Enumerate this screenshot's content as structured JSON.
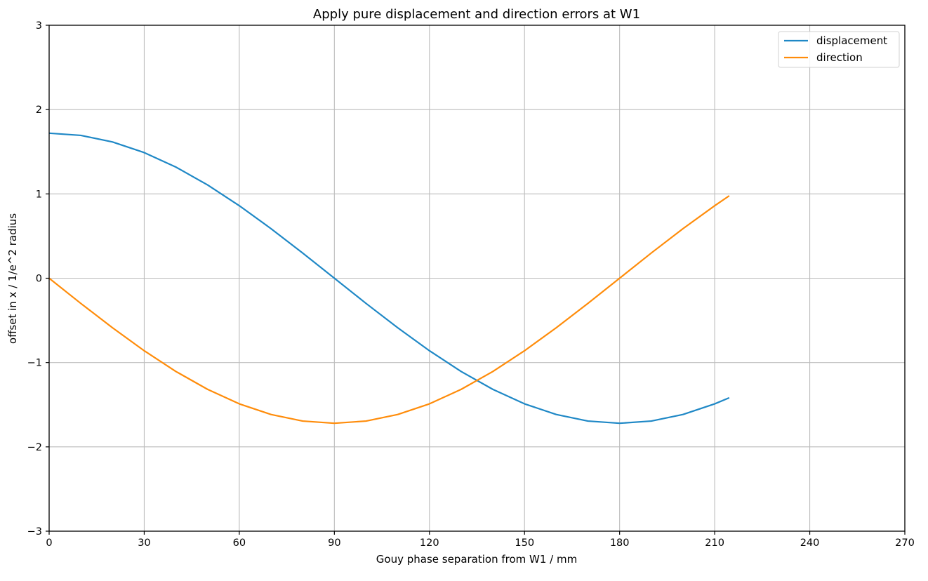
{
  "chart_data": {
    "type": "line",
    "title": "Apply pure displacement and direction errors at W1",
    "xlabel": "Gouy phase separation from W1 / mm",
    "ylabel": "offset in x / 1/e^2 radius",
    "xlim": [
      0,
      270
    ],
    "ylim": [
      -3,
      3
    ],
    "xticks": [
      0,
      30,
      60,
      90,
      120,
      150,
      180,
      210,
      240,
      270
    ],
    "xtick_labels": [
      "0",
      "30",
      "60",
      "90",
      "120",
      "150",
      "180",
      "210",
      "240",
      "270"
    ],
    "yticks": [
      -3,
      -2,
      -1,
      0,
      1,
      2,
      3
    ],
    "ytick_labels": [
      "−3",
      "−2",
      "−1",
      "0",
      "1",
      "2",
      "3"
    ],
    "grid": true,
    "legend_position": "top-right",
    "series": [
      {
        "name": "displacement",
        "color": "#1f88c6",
        "x": [
          0,
          10,
          20,
          30,
          40,
          50,
          60,
          70,
          80,
          90,
          100,
          110,
          120,
          130,
          140,
          150,
          160,
          170,
          180,
          190,
          200,
          210,
          214.6
        ],
        "y": [
          1.72,
          1.694,
          1.616,
          1.49,
          1.318,
          1.106,
          0.86,
          0.588,
          0.299,
          0.0,
          -0.299,
          -0.588,
          -0.86,
          -1.106,
          -1.318,
          -1.49,
          -1.616,
          -1.694,
          -1.72,
          -1.694,
          -1.616,
          -1.49,
          -1.418
        ]
      },
      {
        "name": "direction",
        "color": "#ff8c0a",
        "x": [
          0,
          10,
          20,
          30,
          40,
          50,
          60,
          70,
          80,
          90,
          100,
          110,
          120,
          130,
          140,
          150,
          160,
          170,
          180,
          190,
          200,
          210,
          214.6
        ],
        "y": [
          0.0,
          -0.299,
          -0.588,
          -0.86,
          -1.106,
          -1.318,
          -1.49,
          -1.616,
          -1.694,
          -1.72,
          -1.694,
          -1.616,
          -1.49,
          -1.318,
          -1.106,
          -0.86,
          -0.588,
          -0.299,
          0.0,
          0.299,
          0.588,
          0.86,
          0.978
        ]
      }
    ]
  }
}
